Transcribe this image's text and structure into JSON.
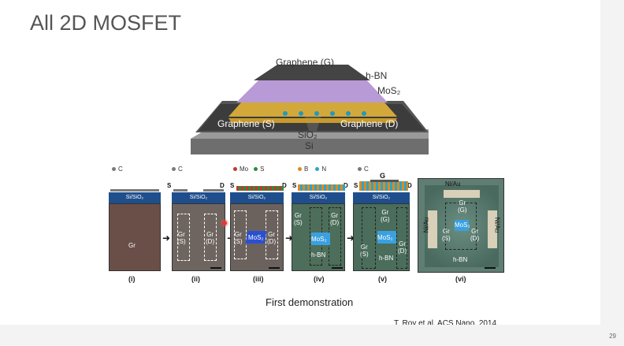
{
  "slide": {
    "title": "All 2D MOSFET",
    "page_number": "29",
    "caption": "First demonstration",
    "citation": "T. Roy et al, ACS Nano, 2014"
  },
  "hero": {
    "graphene_g": "Graphene (G)",
    "hbn": "h-BN",
    "mos2": "MoS₂",
    "graphene_s": "Graphene (S)",
    "graphene_d": "Graphene (D)",
    "sio2": "SiO₂",
    "si": "Si"
  },
  "panels": {
    "substrate_label": "Si/SiO₂",
    "legend_c": "C",
    "legend_mo": "Mo",
    "legend_s": "S",
    "legend_b": "B",
    "legend_n": "N",
    "s_label": "S",
    "d_label": "D",
    "g_label": "G",
    "gr": "Gr",
    "gr_s": "Gr\n(S)",
    "gr_d": "Gr\n(D)",
    "gr_g": "Gr\n(G)",
    "mos2": "MoS₂",
    "hbn": "h-BN",
    "niau": "Ni/Au",
    "numerals": [
      "(i)",
      "(ii)",
      "(iii)",
      "(iv)",
      "(v)",
      "(vi)"
    ]
  },
  "colors": {
    "carbon": "#7a7a7a",
    "mo": "#c0392b",
    "sulfur": "#2e8b3c",
    "boron": "#e08a1e",
    "nitrogen": "#2aa6c9",
    "substrate": "#1f4e8c"
  }
}
